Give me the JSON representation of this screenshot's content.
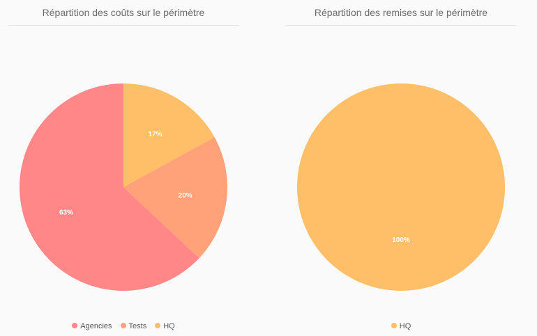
{
  "chart_data": [
    {
      "type": "pie",
      "title": "Répartition des coûts sur le périmètre",
      "categories": [
        "HQ",
        "Tests",
        "Agencies"
      ],
      "values": [
        17,
        20,
        63
      ],
      "labels": [
        "17%",
        "20%",
        "63%"
      ],
      "colors": [
        "#ffbf69",
        "#ffa27a",
        "#ff8787"
      ],
      "legend": {
        "placement": "bottom",
        "items": [
          {
            "label": "Agencies",
            "color": "#ff8787"
          },
          {
            "label": "Tests",
            "color": "#ffa27a"
          },
          {
            "label": "HQ",
            "color": "#ffbf69"
          }
        ]
      }
    },
    {
      "type": "pie",
      "title": "Répartition des remises sur le périmètre",
      "categories": [
        "HQ"
      ],
      "values": [
        100
      ],
      "labels": [
        "100%"
      ],
      "colors": [
        "#ffbf69"
      ],
      "legend": {
        "placement": "bottom",
        "items": [
          {
            "label": "HQ",
            "color": "#ffbf69"
          }
        ]
      }
    }
  ]
}
